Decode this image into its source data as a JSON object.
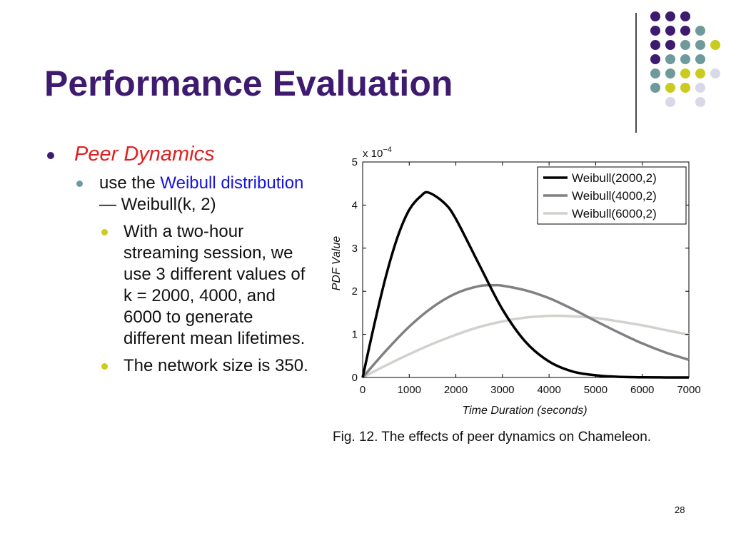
{
  "slide": {
    "title": "Performance Evaluation",
    "page_number": "28",
    "caption": "Fig. 12. The effects of peer dynamics on Chameleon.",
    "colors": {
      "title": "#3f1b70",
      "accent_red": "#e02020",
      "link_blue": "#1414e0",
      "purple": "#3f1b70",
      "teal": "#6e9a9c",
      "olive": "#c9cb1f",
      "lavender": "#d8d8ea"
    }
  },
  "bullets": {
    "level1": "Peer Dynamics",
    "level2_prefix": "use the",
    "level2_link": "Weibull distribution",
    "level2_suffix": "— Weibull(k, 2)",
    "level3": [
      "With a two-hour streaming session, we use 3 different values of k = 2000, 4000, and 6000 to generate different mean lifetimes.",
      "The network size is 350."
    ]
  },
  "chart_data": {
    "type": "line",
    "xlabel": "Time Duration (seconds)",
    "ylabel": "PDF Value",
    "y_multiplier_label": "x 10",
    "y_multiplier_exp": "−4",
    "xlim": [
      0,
      7000
    ],
    "ylim": [
      0,
      5
    ],
    "x_ticks": [
      "0",
      "1000",
      "2000",
      "3000",
      "4000",
      "5000",
      "6000",
      "7000"
    ],
    "y_ticks": [
      "0",
      "1",
      "2",
      "3",
      "4",
      "5"
    ],
    "grid": false,
    "legend_position": "top-right",
    "series": [
      {
        "name": "Weibull(2000,2)",
        "color": "#000000",
        "x": [
          0,
          250,
          500,
          750,
          1000,
          1250,
          1414,
          1750,
          2000,
          2500,
          3000,
          3500,
          4000,
          4500,
          5000,
          5500,
          6000,
          6500,
          7000
        ],
        "y": [
          0,
          1.23,
          2.35,
          3.26,
          3.89,
          4.21,
          4.29,
          4.05,
          3.68,
          2.62,
          1.58,
          0.82,
          0.37,
          0.14,
          0.05,
          0.015,
          0.004,
          0.001,
          0.0
        ]
      },
      {
        "name": "Weibull(4000,2)",
        "color": "#808080",
        "x": [
          0,
          500,
          1000,
          1500,
          2000,
          2500,
          2828,
          3000,
          3500,
          4000,
          4500,
          5000,
          5500,
          6000,
          6500,
          7000
        ],
        "y": [
          0,
          0.62,
          1.18,
          1.63,
          1.95,
          2.12,
          2.14,
          2.13,
          2.02,
          1.84,
          1.59,
          1.31,
          1.04,
          0.79,
          0.58,
          0.41
        ]
      },
      {
        "name": "Weibull(6000,2)",
        "color": "#d3d1cd",
        "x": [
          0,
          500,
          1000,
          1500,
          2000,
          2500,
          3000,
          3500,
          4000,
          4243,
          4500,
          5000,
          5500,
          6000,
          6500,
          7000
        ],
        "y": [
          0,
          0.28,
          0.54,
          0.78,
          0.99,
          1.17,
          1.3,
          1.39,
          1.43,
          1.43,
          1.42,
          1.38,
          1.3,
          1.21,
          1.1,
          0.99
        ]
      }
    ]
  }
}
